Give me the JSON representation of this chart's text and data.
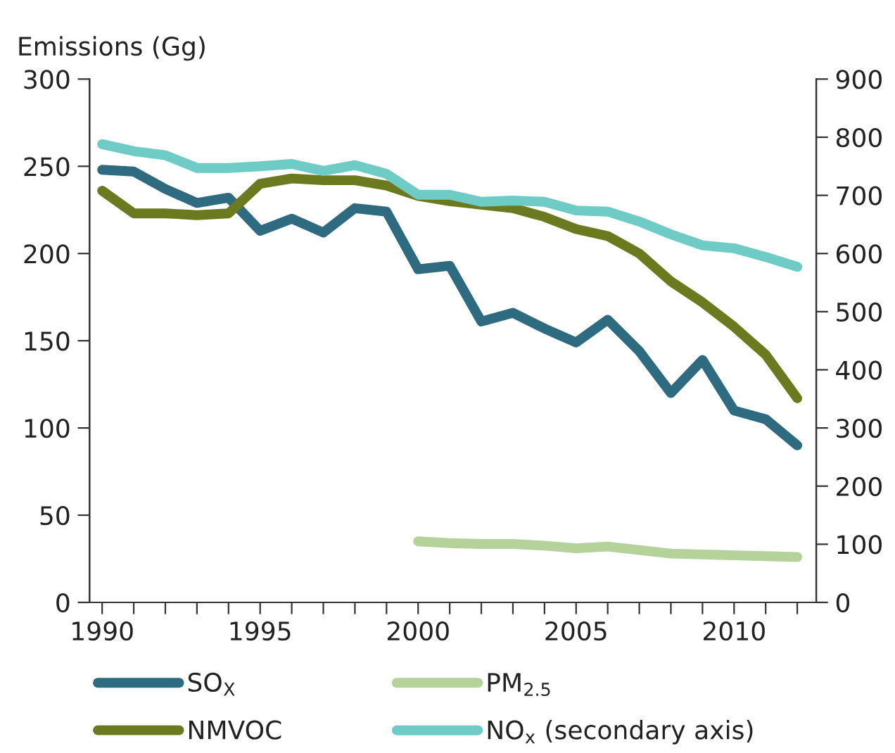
{
  "chart_data": {
    "type": "line",
    "ylabel": "Emissions (Gg)",
    "x": [
      1990,
      1991,
      1992,
      1993,
      1994,
      1995,
      1996,
      1997,
      1998,
      1999,
      2000,
      2001,
      2002,
      2003,
      2004,
      2005,
      2006,
      2007,
      2008,
      2009,
      2010,
      2011,
      2012
    ],
    "series": [
      {
        "name": "SO$_{X}$",
        "color": "#2e6b80",
        "values": [
          248,
          247,
          237,
          229,
          232,
          213,
          220,
          212,
          226,
          224,
          191,
          193,
          161,
          166,
          157,
          149,
          162,
          144,
          120,
          139,
          110,
          105,
          90
        ]
      },
      {
        "name": "PM$_{2.5}$",
        "color": "#b5d29a",
        "x": [
          2000,
          2001,
          2002,
          2003,
          2004,
          2005,
          2006,
          2007,
          2008,
          2009,
          2010,
          2011,
          2012
        ],
        "values": [
          35,
          34,
          33.5,
          33.5,
          32.5,
          31,
          32,
          30,
          28,
          27.5,
          27,
          26.5,
          26
        ]
      },
      {
        "name": "NMVOC",
        "color": "#6b7a1f",
        "values": [
          236,
          223,
          223,
          222,
          223,
          240,
          243,
          242,
          242,
          239,
          233,
          230,
          228,
          226,
          221,
          214,
          210,
          200,
          184,
          172,
          158,
          142,
          117
        ]
      },
      {
        "name": "NO$_{x}$ (secondary axis)",
        "color": "#6ecbc6",
        "axis": "y2",
        "values": [
          788,
          776,
          769,
          747,
          747,
          750,
          754,
          742,
          752,
          737,
          701,
          701,
          689,
          691,
          689,
          674,
          672,
          655,
          633,
          614,
          609,
          594,
          577
        ]
      }
    ],
    "xlim": [
      1989.6,
      2012.6
    ],
    "xticks": [
      1990,
      {
        "value": 1991,
        "label": null
      },
      {
        "value": 1992,
        "label": null
      },
      {
        "value": 1993,
        "label": null
      },
      {
        "value": 1994,
        "label": null
      },
      1995,
      {
        "value": 1996,
        "label": null
      },
      {
        "value": 1997,
        "label": null
      },
      {
        "value": 1998,
        "label": null
      },
      {
        "value": 1999,
        "label": null
      },
      2000,
      {
        "value": 2001,
        "label": null
      },
      {
        "value": 2002,
        "label": null
      },
      {
        "value": 2003,
        "label": null
      },
      {
        "value": 2004,
        "label": null
      },
      2005,
      {
        "value": 2006,
        "label": null
      },
      {
        "value": 2007,
        "label": null
      },
      {
        "value": 2008,
        "label": null
      },
      {
        "value": 2009,
        "label": null
      },
      2010,
      {
        "value": 2011,
        "label": null
      },
      {
        "value": 2012,
        "label": null
      }
    ],
    "ylim": [
      0,
      300
    ],
    "yticks": [
      0,
      50,
      100,
      150,
      200,
      250,
      300
    ],
    "y2lim": [
      0,
      900
    ],
    "y2ticks": [
      0,
      100,
      200,
      300,
      400,
      500,
      600,
      700,
      800,
      900
    ],
    "grid": false,
    "legend": "bottom",
    "marker": "none",
    "line_style": "solid"
  }
}
